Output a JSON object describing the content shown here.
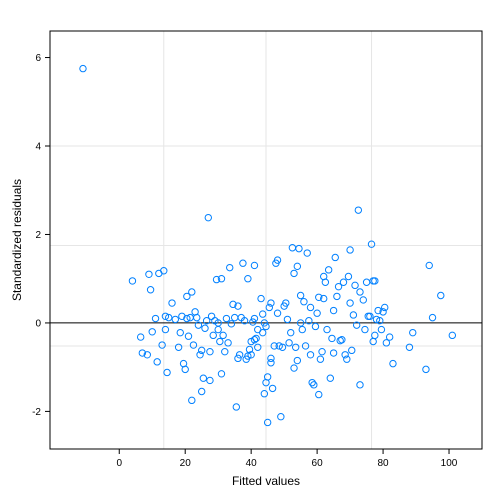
{
  "chart_data": {
    "type": "scatter",
    "xlabel": "Fitted values",
    "ylabel": "Standardized residuals",
    "xlim": [
      -21,
      110
    ],
    "ylim": [
      -2.85,
      6.6
    ],
    "x_ticks": [
      0,
      20,
      40,
      60,
      80,
      100
    ],
    "y_ticks": [
      -2,
      0,
      2,
      4,
      6
    ],
    "x_tick_labels": [
      "0",
      "20",
      "40",
      "60",
      "80",
      "100"
    ],
    "y_tick_labels": [
      "-2",
      "0",
      "2",
      "4",
      "6"
    ],
    "grid": true,
    "reference_lines": {
      "horizontal_solid": 0,
      "horizontal_light": [
        1.75,
        -0.52,
        4.0
      ],
      "vertical_light": [
        13.5,
        44.5,
        76.5
      ]
    },
    "point_color": "#0080ff",
    "points": [
      [
        -11,
        5.75
      ],
      [
        4,
        0.95
      ],
      [
        6.5,
        -0.32
      ],
      [
        7,
        -0.68
      ],
      [
        8.5,
        -0.72
      ],
      [
        9,
        1.1
      ],
      [
        9.5,
        0.75
      ],
      [
        10,
        -0.2
      ],
      [
        11,
        0.1
      ],
      [
        11.5,
        -0.88
      ],
      [
        12,
        1.12
      ],
      [
        13,
        -0.5
      ],
      [
        13.5,
        1.18
      ],
      [
        14,
        -0.15
      ],
      [
        14,
        0.15
      ],
      [
        14.5,
        -1.12
      ],
      [
        15,
        0.12
      ],
      [
        16,
        0.45
      ],
      [
        17,
        0.08
      ],
      [
        18,
        -0.55
      ],
      [
        18.5,
        -0.22
      ],
      [
        19,
        0.15
      ],
      [
        19.5,
        -0.92
      ],
      [
        20,
        -1.05
      ],
      [
        20.5,
        0.6
      ],
      [
        20.5,
        0.1
      ],
      [
        21,
        -0.3
      ],
      [
        21.5,
        0.12
      ],
      [
        22,
        0.7
      ],
      [
        22,
        -1.75
      ],
      [
        22.5,
        -0.5
      ],
      [
        23,
        0.25
      ],
      [
        23.5,
        0.12
      ],
      [
        24,
        -0.05
      ],
      [
        24.5,
        -0.72
      ],
      [
        25,
        -1.55
      ],
      [
        25,
        -0.62
      ],
      [
        25.5,
        -1.25
      ],
      [
        26,
        -0.12
      ],
      [
        26.5,
        0.05
      ],
      [
        27,
        2.38
      ],
      [
        27.5,
        -1.3
      ],
      [
        27.5,
        -0.65
      ],
      [
        28,
        0.15
      ],
      [
        28.5,
        -0.28
      ],
      [
        29,
        0.05
      ],
      [
        29.5,
        0.98
      ],
      [
        30,
        -0.15
      ],
      [
        30,
        0.0
      ],
      [
        30.5,
        -0.42
      ],
      [
        31,
        1.0
      ],
      [
        31,
        -1.15
      ],
      [
        31.5,
        -0.28
      ],
      [
        32,
        -0.65
      ],
      [
        32.5,
        0.1
      ],
      [
        33,
        -0.45
      ],
      [
        33.5,
        1.25
      ],
      [
        34,
        -0.02
      ],
      [
        34.5,
        0.42
      ],
      [
        35,
        0.12
      ],
      [
        35.5,
        -1.9
      ],
      [
        36,
        0.38
      ],
      [
        36,
        -0.8
      ],
      [
        36.5,
        -0.72
      ],
      [
        37,
        0.12
      ],
      [
        37.5,
        1.35
      ],
      [
        38,
        0.05
      ],
      [
        38.5,
        -0.82
      ],
      [
        39,
        1.0
      ],
      [
        39,
        -0.75
      ],
      [
        39.5,
        -0.6
      ],
      [
        40,
        -0.42
      ],
      [
        40,
        -0.72
      ],
      [
        40.5,
        0.02
      ],
      [
        41,
        0.1
      ],
      [
        41,
        1.3
      ],
      [
        41,
        -0.38
      ],
      [
        41.5,
        -0.35
      ],
      [
        42,
        -0.15
      ],
      [
        42,
        -0.55
      ],
      [
        43,
        0.55
      ],
      [
        43.5,
        -0.22
      ],
      [
        43.5,
        0.2
      ],
      [
        44,
        -1.6
      ],
      [
        44,
        0.0
      ],
      [
        44.5,
        -1.35
      ],
      [
        44.5,
        -0.08
      ],
      [
        45,
        -1.22
      ],
      [
        45,
        -2.25
      ],
      [
        45.5,
        0.35
      ],
      [
        46,
        0.45
      ],
      [
        46,
        -0.9
      ],
      [
        46,
        -0.8
      ],
      [
        46.5,
        -1.48
      ],
      [
        47,
        -0.52
      ],
      [
        47.5,
        1.35
      ],
      [
        48,
        1.42
      ],
      [
        48,
        0.22
      ],
      [
        48.5,
        -0.52
      ],
      [
        49,
        -2.12
      ],
      [
        49.5,
        -0.55
      ],
      [
        50,
        0.38
      ],
      [
        50.5,
        0.45
      ],
      [
        51,
        0.08
      ],
      [
        51.5,
        -0.45
      ],
      [
        52,
        -0.22
      ],
      [
        52.5,
        1.7
      ],
      [
        53,
        1.12
      ],
      [
        53,
        -1.02
      ],
      [
        53.5,
        -0.55
      ],
      [
        54,
        1.28
      ],
      [
        54,
        -0.85
      ],
      [
        54.5,
        1.68
      ],
      [
        55,
        0.0
      ],
      [
        55,
        0.62
      ],
      [
        55.5,
        -0.15
      ],
      [
        56,
        0.48
      ],
      [
        56.5,
        -0.52
      ],
      [
        57,
        1.58
      ],
      [
        57.5,
        0.05
      ],
      [
        58,
        0.35
      ],
      [
        58,
        -0.72
      ],
      [
        58.5,
        -1.35
      ],
      [
        59,
        -1.4
      ],
      [
        59.5,
        -0.08
      ],
      [
        60,
        0.22
      ],
      [
        60.5,
        0.58
      ],
      [
        60.5,
        -1.62
      ],
      [
        61,
        -0.82
      ],
      [
        61.5,
        -0.65
      ],
      [
        62,
        1.05
      ],
      [
        62,
        0.55
      ],
      [
        62.5,
        0.92
      ],
      [
        63,
        -0.15
      ],
      [
        63.5,
        1.2
      ],
      [
        64,
        -1.25
      ],
      [
        64.5,
        -0.35
      ],
      [
        65,
        0.28
      ],
      [
        65,
        -0.68
      ],
      [
        65.5,
        1.48
      ],
      [
        66,
        0.6
      ],
      [
        66.5,
        0.82
      ],
      [
        67,
        -0.4
      ],
      [
        67.5,
        -0.38
      ],
      [
        68,
        0.92
      ],
      [
        68.5,
        -0.72
      ],
      [
        69,
        -0.82
      ],
      [
        69.5,
        1.05
      ],
      [
        70,
        0.45
      ],
      [
        70,
        1.65
      ],
      [
        70.5,
        -0.62
      ],
      [
        71,
        0.18
      ],
      [
        71.5,
        0.85
      ],
      [
        72,
        -0.05
      ],
      [
        72.5,
        2.55
      ],
      [
        73,
        0.7
      ],
      [
        73,
        -1.4
      ],
      [
        74,
        0.52
      ],
      [
        74.5,
        -0.15
      ],
      [
        75,
        0.92
      ],
      [
        75.5,
        0.15
      ],
      [
        76,
        0.15
      ],
      [
        76.5,
        1.78
      ],
      [
        77,
        0.95
      ],
      [
        77,
        -0.42
      ],
      [
        77.5,
        0.95
      ],
      [
        77.5,
        -0.28
      ],
      [
        78,
        0.08
      ],
      [
        78.5,
        0.28
      ],
      [
        79,
        0.05
      ],
      [
        79.5,
        -0.15
      ],
      [
        80,
        0.25
      ],
      [
        80.5,
        0.35
      ],
      [
        81,
        -0.45
      ],
      [
        82,
        -0.32
      ],
      [
        83,
        -0.92
      ],
      [
        88,
        -0.55
      ],
      [
        89,
        -0.22
      ],
      [
        93,
        -1.05
      ],
      [
        94,
        1.3
      ],
      [
        95,
        0.12
      ],
      [
        97.5,
        0.62
      ],
      [
        101,
        -0.28
      ]
    ]
  }
}
